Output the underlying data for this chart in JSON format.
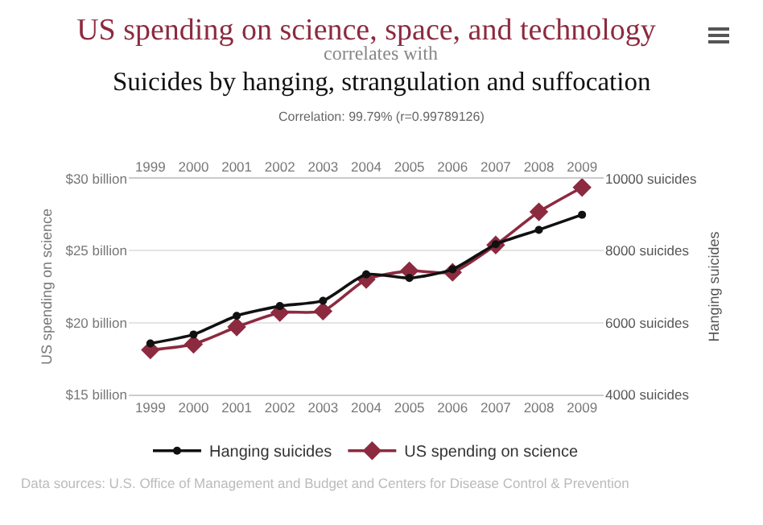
{
  "chart_data": {
    "type": "line",
    "title": "US spending on science, space, and technology",
    "subtitle": "correlates with",
    "annotations": [
      "Suicides by hanging, strangulation and suffocation",
      "Correlation: 99.79% (r=0.99789126)",
      "Data sources: U.S. Office of Management and Budget and Centers for Disease Control & Prevention"
    ],
    "ylabel": "US spending on science",
    "y2label": "Hanging suicides",
    "x": [
      1999,
      2000,
      2001,
      2002,
      2003,
      2004,
      2005,
      2006,
      2007,
      2008,
      2009
    ],
    "series": [
      {
        "name": "Hanging suicides",
        "color": "#111111",
        "axis": "y2",
        "marker": "circle",
        "values": [
          5420,
          5670,
          6190,
          6460,
          6610,
          7340,
          7240,
          7480,
          8180,
          8580,
          9000
        ]
      },
      {
        "name": "US spending on science",
        "color": "#8c2a3f",
        "axis": "y",
        "marker": "diamond",
        "values": [
          18.1,
          18.5,
          19.7,
          20.7,
          20.8,
          23.0,
          23.6,
          23.5,
          25.4,
          27.7,
          29.4
        ]
      }
    ],
    "xlim": [
      1998.5,
      2009.5
    ],
    "xticks": [
      1999,
      2000,
      2001,
      2002,
      2003,
      2004,
      2005,
      2006,
      2007,
      2008,
      2009
    ],
    "x2lim": [
      1998.5,
      2009.5
    ],
    "x2ticks": [
      1999,
      2000,
      2001,
      2002,
      2003,
      2004,
      2005,
      2006,
      2007,
      2008,
      2009
    ],
    "ylim": [
      15,
      30
    ],
    "yticks": [
      {
        "value": 15,
        "label": "$15 billion"
      },
      {
        "value": 20,
        "label": "$20 billion"
      },
      {
        "value": 25,
        "label": "$25 billion"
      },
      {
        "value": 30,
        "label": "$30 billion"
      }
    ],
    "y2lim": [
      4000,
      10000
    ],
    "y2ticks": [
      {
        "value": 4000,
        "label": "4000 suicides"
      },
      {
        "value": 6000,
        "label": "6000 suicides"
      },
      {
        "value": 8000,
        "label": "8000 suicides"
      },
      {
        "value": 10000,
        "label": "10000 suicides"
      }
    ],
    "grid": "y",
    "legend": "bottom",
    "line_style": "solid"
  }
}
